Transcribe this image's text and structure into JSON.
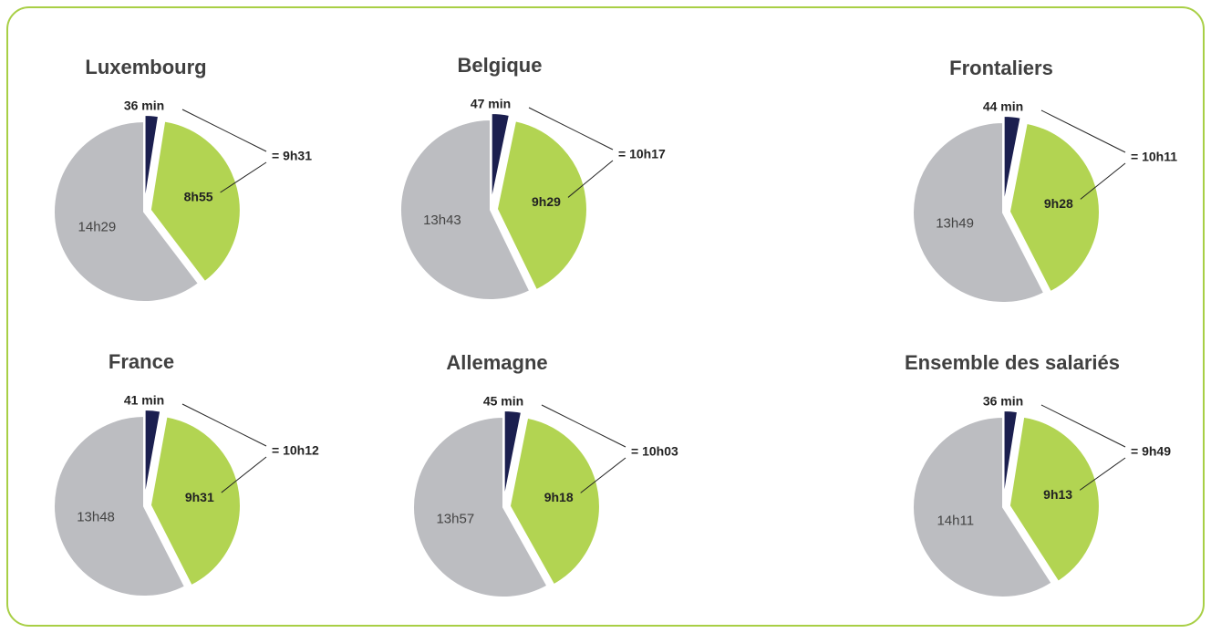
{
  "chart_data": [
    {
      "type": "pie",
      "title": "Luxembourg",
      "values": [
        36,
        535,
        869
      ],
      "value_labels": [
        "36 min",
        "8h55",
        "14h29"
      ],
      "total_label": "= 9h31",
      "colors": [
        "#1b1f4f",
        "#b2d452",
        "#bcbdc1"
      ]
    },
    {
      "type": "pie",
      "title": "Belgique",
      "values": [
        47,
        569,
        823
      ],
      "value_labels": [
        "47 min",
        "9h29",
        "13h43"
      ],
      "total_label": "= 10h17",
      "colors": [
        "#1b1f4f",
        "#b2d452",
        "#bcbdc1"
      ]
    },
    {
      "type": "pie",
      "title": "Frontaliers",
      "values": [
        44,
        568,
        829
      ],
      "value_labels": [
        "44 min",
        "9h28",
        "13h49"
      ],
      "total_label": "= 10h11",
      "colors": [
        "#1b1f4f",
        "#b2d452",
        "#bcbdc1"
      ]
    },
    {
      "type": "pie",
      "title": "France",
      "values": [
        41,
        571,
        828
      ],
      "value_labels": [
        "41 min",
        "9h31",
        "13h48"
      ],
      "total_label": "= 10h12",
      "colors": [
        "#1b1f4f",
        "#b2d452",
        "#bcbdc1"
      ]
    },
    {
      "type": "pie",
      "title": "Allemagne",
      "values": [
        45,
        558,
        837
      ],
      "value_labels": [
        "45 min",
        "9h18",
        "13h57"
      ],
      "total_label": "= 10h03",
      "colors": [
        "#1b1f4f",
        "#b2d452",
        "#bcbdc1"
      ]
    },
    {
      "type": "pie",
      "title": "Ensemble des salariés",
      "values": [
        36,
        553,
        851
      ],
      "value_labels": [
        "36 min",
        "9h13",
        "14h11"
      ],
      "total_label": "= 9h49",
      "colors": [
        "#1b1f4f",
        "#b2d452",
        "#bcbdc1"
      ]
    }
  ]
}
